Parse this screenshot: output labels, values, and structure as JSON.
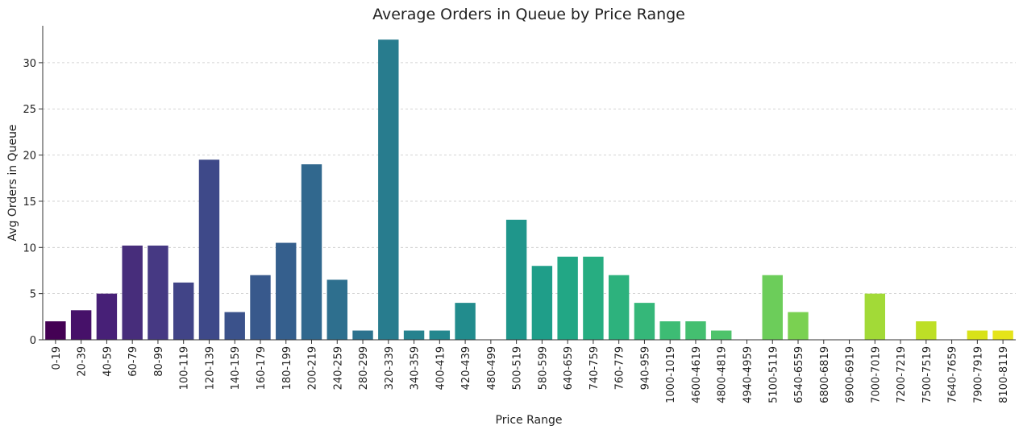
{
  "chart_data": {
    "type": "bar",
    "title": "Average Orders in Queue by Price Range",
    "xlabel": "Price Range",
    "ylabel": "Avg Orders in Queue",
    "ylim": [
      0,
      34
    ],
    "yticks": [
      0,
      5,
      10,
      15,
      20,
      25,
      30
    ],
    "grid": "horizontal-dashed",
    "categories": [
      "0-19",
      "20-39",
      "40-59",
      "60-79",
      "80-99",
      "100-119",
      "120-139",
      "140-159",
      "160-179",
      "180-199",
      "200-219",
      "240-259",
      "280-299",
      "320-339",
      "340-359",
      "400-419",
      "420-439",
      "480-499",
      "500-519",
      "580-599",
      "640-659",
      "740-759",
      "760-779",
      "940-959",
      "1000-1019",
      "4600-4619",
      "4800-4819",
      "4940-4959",
      "5100-5119",
      "6540-6559",
      "6800-6819",
      "6900-6919",
      "7000-7019",
      "7200-7219",
      "7500-7519",
      "7640-7659",
      "7900-7919",
      "8100-8119"
    ],
    "values": [
      2,
      3.2,
      5,
      10.2,
      10.2,
      6.2,
      19.5,
      3,
      7,
      10.5,
      19,
      6.5,
      1,
      32.5,
      1,
      1,
      4,
      0,
      13,
      8,
      9,
      9,
      7,
      4,
      2,
      2,
      1,
      0,
      7,
      3,
      0,
      0,
      5,
      0,
      2,
      0,
      1,
      1
    ],
    "colors": [
      "#440154",
      "#461169",
      "#472077",
      "#472d7b",
      "#463983",
      "#414487",
      "#3e4989",
      "#3b528b",
      "#38598c",
      "#355f8d",
      "#31688e",
      "#2e6f8e",
      "#2c728e",
      "#287c8e",
      "#26828e",
      "#24878e",
      "#228c8d",
      "#21918c",
      "#1f968b",
      "#1f9e89",
      "#22a785",
      "#27ad81",
      "#2db27d",
      "#35b779",
      "#3dbc74",
      "#44bf70",
      "#4ec36b",
      "#5ac864",
      "#6ccd5a",
      "#7ad151",
      "#84d44b",
      "#93d741",
      "#a2da37",
      "#b5de2b",
      "#bddf26",
      "#c8e020",
      "#d8e219",
      "#e5e419"
    ]
  }
}
